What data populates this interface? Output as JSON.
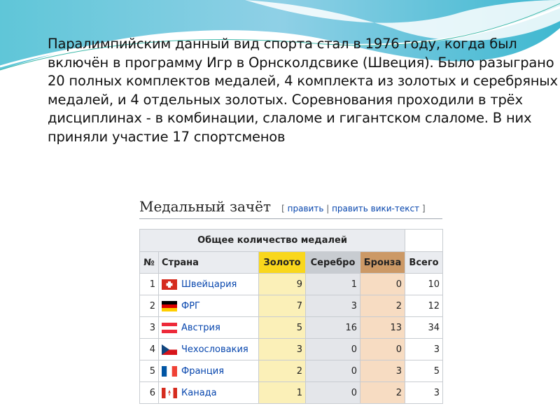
{
  "paragraph": "Паралимпийским данный вид спорта стал в 1976 году, когда был включён в программу Игр в Орнсколдсвике (Швеция). Было разыграно 20 полных комплектов медалей, 4 комплекта из золотых и серебряных медалей, и 4 отдельных золотых. Соревнования проходили в трёх дисциплинах - в комбинации, слаломе и гигантском слаломе. В них приняли участие 17 спортсменов",
  "section": {
    "title": "Медальный зачёт",
    "edit_open": "[ ",
    "edit": "править",
    "sep": " | ",
    "edit_source": "править вики-текст",
    "edit_close": " ]"
  },
  "table": {
    "caption": "Общее количество медалей",
    "headers": {
      "num": "№",
      "country": "Страна",
      "gold": "Золото",
      "silver": "Серебро",
      "bronze": "Бронза",
      "total": "Всего"
    },
    "rows": [
      {
        "num": "1",
        "country": "Швейцария",
        "flag": "switzerland-flag",
        "gold": "9",
        "silver": "1",
        "bronze": "0",
        "total": "10"
      },
      {
        "num": "2",
        "country": "ФРГ",
        "flag": "germany-flag",
        "gold": "7",
        "silver": "3",
        "bronze": "2",
        "total": "12"
      },
      {
        "num": "3",
        "country": "Австрия",
        "flag": "austria-flag",
        "gold": "5",
        "silver": "16",
        "bronze": "13",
        "total": "34"
      },
      {
        "num": "4",
        "country": "Чехословакия",
        "flag": "czechoslovakia-flag",
        "gold": "3",
        "silver": "0",
        "bronze": "0",
        "total": "3"
      },
      {
        "num": "5",
        "country": "Франция",
        "flag": "france-flag",
        "gold": "2",
        "silver": "0",
        "bronze": "3",
        "total": "5"
      },
      {
        "num": "6",
        "country": "Канада",
        "flag": "canada-flag",
        "gold": "1",
        "silver": "0",
        "bronze": "2",
        "total": "3"
      }
    ]
  },
  "colors": {
    "gold": "#f9d71c",
    "silver": "#c8ccd1",
    "bronze": "#cc9966",
    "link": "#0645ad"
  }
}
